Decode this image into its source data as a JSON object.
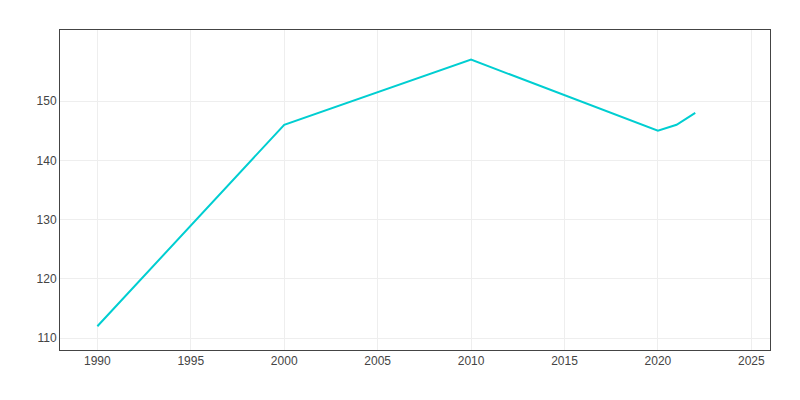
{
  "chart_data": {
    "type": "line",
    "x": [
      1990,
      2000,
      2010,
      2020,
      2021,
      2022
    ],
    "values": [
      112,
      146,
      157,
      145,
      146,
      148
    ],
    "color": "#00CED1",
    "xlim": [
      1988,
      2026
    ],
    "ylim": [
      108,
      162
    ],
    "xticks": [
      1990,
      1995,
      2000,
      2005,
      2010,
      2015,
      2020,
      2025
    ],
    "yticks": [
      110,
      120,
      130,
      140,
      150
    ],
    "grid": true
  }
}
